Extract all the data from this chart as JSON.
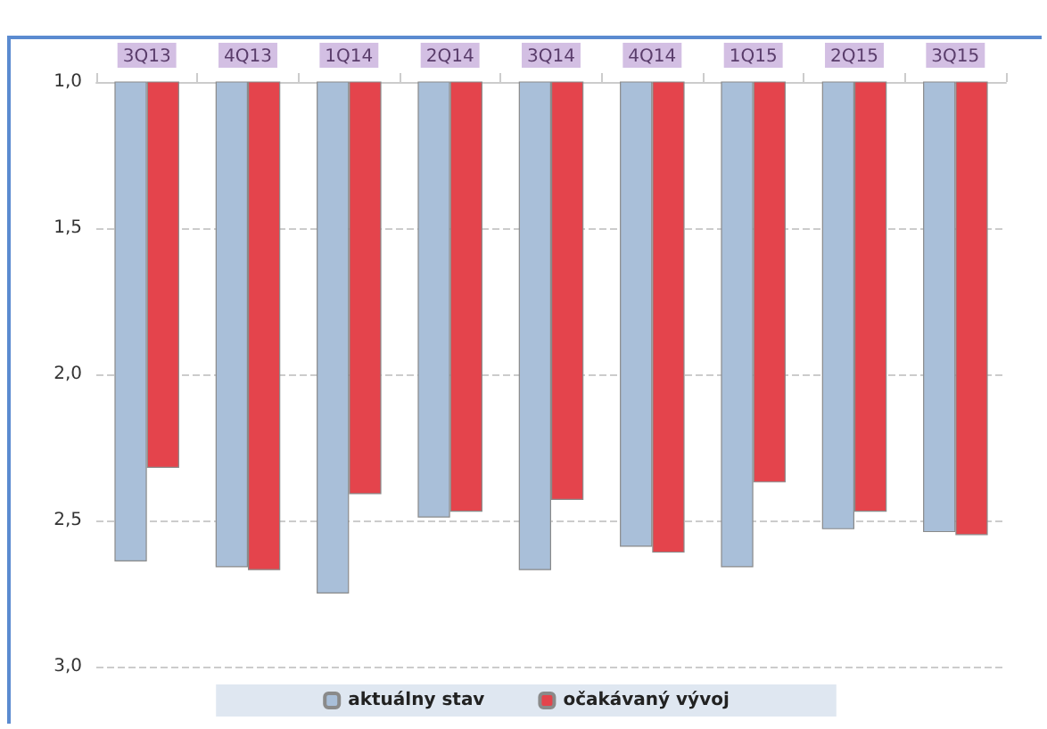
{
  "chart_data": {
    "type": "bar",
    "categories": [
      "3Q13",
      "4Q13",
      "1Q14",
      "2Q14",
      "3Q14",
      "4Q14",
      "1Q15",
      "2Q15",
      "3Q15"
    ],
    "series": [
      {
        "name": "aktuálny stav",
        "color": "#a9bfd9",
        "values": [
          2.64,
          2.66,
          2.75,
          2.49,
          2.67,
          2.59,
          2.66,
          2.53,
          2.54
        ]
      },
      {
        "name": "očakávaný vývoj",
        "color": "#e4444c",
        "values": [
          2.32,
          2.67,
          2.41,
          2.47,
          2.43,
          2.61,
          2.37,
          2.47,
          2.55
        ]
      }
    ],
    "ylim": [
      3.0,
      1.0
    ],
    "yticks": [
      {
        "value": 1.0,
        "label": "1,0"
      },
      {
        "value": 1.5,
        "label": "1,5"
      },
      {
        "value": 2.0,
        "label": "2,0"
      },
      {
        "value": 2.5,
        "label": "2,5"
      },
      {
        "value": 3.0,
        "label": "3,0"
      }
    ],
    "grid": "y",
    "legend": "bottom"
  }
}
